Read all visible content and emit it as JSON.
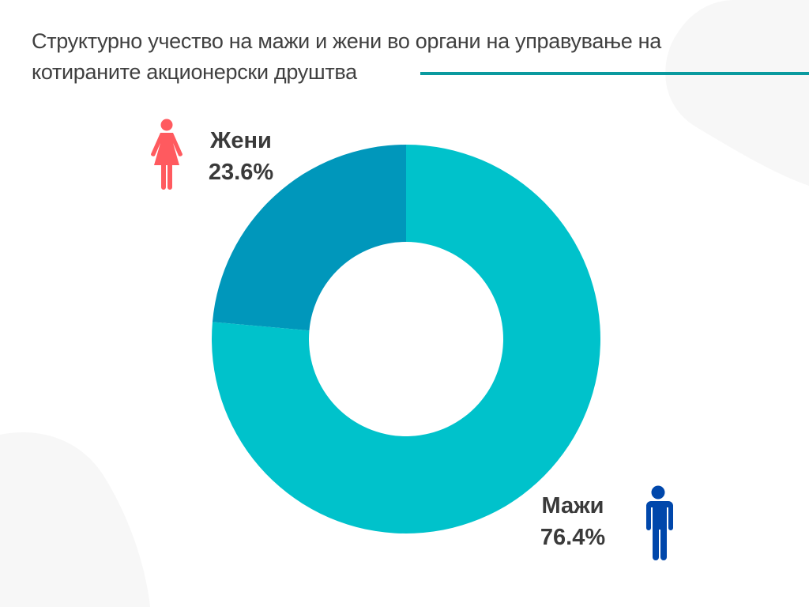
{
  "title": "Структурно учество на мажи и жени во органи на управување на котираните акционерски друштва",
  "chart_data": {
    "type": "pie",
    "subtype": "donut",
    "title": "Структурно учество на мажи и жени во органи на управување на котираните акционерски друштва",
    "categories": [
      "Жени",
      "Мажи"
    ],
    "values": [
      23.6,
      76.4
    ],
    "value_labels": [
      "23.6%",
      "76.4%"
    ],
    "colors": [
      "#0097BB",
      "#00C2CB"
    ],
    "icons": [
      "female-person-icon",
      "male-person-icon"
    ],
    "icon_colors": [
      "#FF5A5F",
      "#0047AB"
    ]
  }
}
